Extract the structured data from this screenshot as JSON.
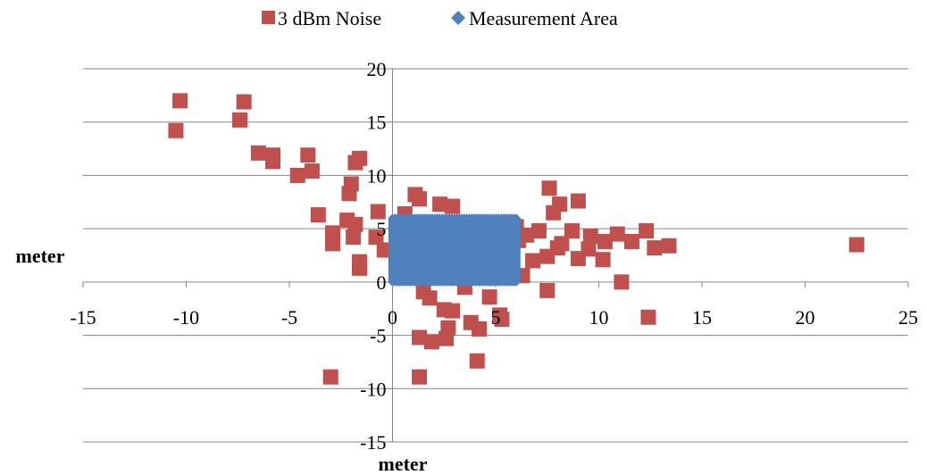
{
  "chart_data": {
    "type": "scatter",
    "xlabel": "meter",
    "ylabel": "meter",
    "xlim": [
      -15,
      25
    ],
    "ylim": [
      -15,
      20
    ],
    "x_ticks": [
      -15,
      -10,
      -5,
      0,
      5,
      10,
      15,
      20,
      25
    ],
    "y_ticks": [
      -15,
      -10,
      -5,
      0,
      5,
      10,
      15,
      20
    ],
    "grid": "horizontal",
    "legend_position": "top",
    "series": [
      {
        "name": "3 dBm Noise",
        "color": "#c0504d",
        "marker": "square",
        "points": [
          [
            -10.3,
            17.0
          ],
          [
            -10.5,
            14.2
          ],
          [
            -7.2,
            16.9
          ],
          [
            -7.4,
            15.2
          ],
          [
            -6.5,
            12.1
          ],
          [
            -5.8,
            11.9
          ],
          [
            -5.8,
            11.3
          ],
          [
            -4.1,
            11.9
          ],
          [
            -3.9,
            10.4
          ],
          [
            -4.6,
            10.0
          ],
          [
            -1.6,
            11.6
          ],
          [
            -1.8,
            11.2
          ],
          [
            -2.0,
            9.2
          ],
          [
            -2.1,
            8.3
          ],
          [
            -3.6,
            6.3
          ],
          [
            -2.2,
            5.8
          ],
          [
            -1.8,
            5.4
          ],
          [
            -2.9,
            4.6
          ],
          [
            -2.9,
            3.6
          ],
          [
            -1.9,
            4.2
          ],
          [
            -1.6,
            1.9
          ],
          [
            -1.6,
            1.3
          ],
          [
            -0.7,
            6.6
          ],
          [
            -0.8,
            4.2
          ],
          [
            -0.4,
            3.0
          ],
          [
            -3.0,
            -8.9
          ],
          [
            1.1,
            8.2
          ],
          [
            1.3,
            7.8
          ],
          [
            2.3,
            7.3
          ],
          [
            2.9,
            7.1
          ],
          [
            0.6,
            6.4
          ],
          [
            1.5,
            -0.9
          ],
          [
            1.8,
            -1.5
          ],
          [
            2.5,
            -2.6
          ],
          [
            2.9,
            -2.7
          ],
          [
            2.7,
            -4.3
          ],
          [
            2.6,
            -5.3
          ],
          [
            1.9,
            -5.6
          ],
          [
            1.3,
            -5.2
          ],
          [
            1.3,
            -8.9
          ],
          [
            3.8,
            -3.8
          ],
          [
            4.2,
            -4.4
          ],
          [
            4.1,
            -7.4
          ],
          [
            3.5,
            -0.5
          ],
          [
            4.7,
            -1.4
          ],
          [
            5.2,
            -3.1
          ],
          [
            5.3,
            -3.5
          ],
          [
            6.3,
            0.6
          ],
          [
            6.0,
            5.2
          ],
          [
            6.5,
            4.4
          ],
          [
            6.8,
            2.0
          ],
          [
            7.1,
            4.8
          ],
          [
            7.5,
            2.4
          ],
          [
            7.5,
            -0.8
          ],
          [
            7.6,
            8.8
          ],
          [
            7.8,
            6.5
          ],
          [
            8.1,
            7.3
          ],
          [
            8.0,
            3.2
          ],
          [
            8.2,
            3.6
          ],
          [
            8.7,
            4.8
          ],
          [
            9.0,
            7.6
          ],
          [
            9.0,
            2.2
          ],
          [
            9.5,
            3.1
          ],
          [
            9.6,
            4.3
          ],
          [
            10.2,
            2.1
          ],
          [
            10.3,
            3.8
          ],
          [
            10.9,
            4.5
          ],
          [
            11.1,
            0.0
          ],
          [
            11.6,
            3.8
          ],
          [
            12.3,
            4.8
          ],
          [
            12.4,
            -3.3
          ],
          [
            12.7,
            3.2
          ],
          [
            13.4,
            3.4
          ],
          [
            22.5,
            3.5
          ],
          [
            5.8,
            2.8
          ],
          [
            6.1,
            3.9
          ]
        ]
      },
      {
        "name": "Measurement Area",
        "color": "#4f81bd",
        "marker": "diamond",
        "region": {
          "x": [
            0,
            6
          ],
          "y": [
            0,
            6
          ],
          "step_x": 0.12,
          "step_y": 0.1
        }
      }
    ]
  }
}
